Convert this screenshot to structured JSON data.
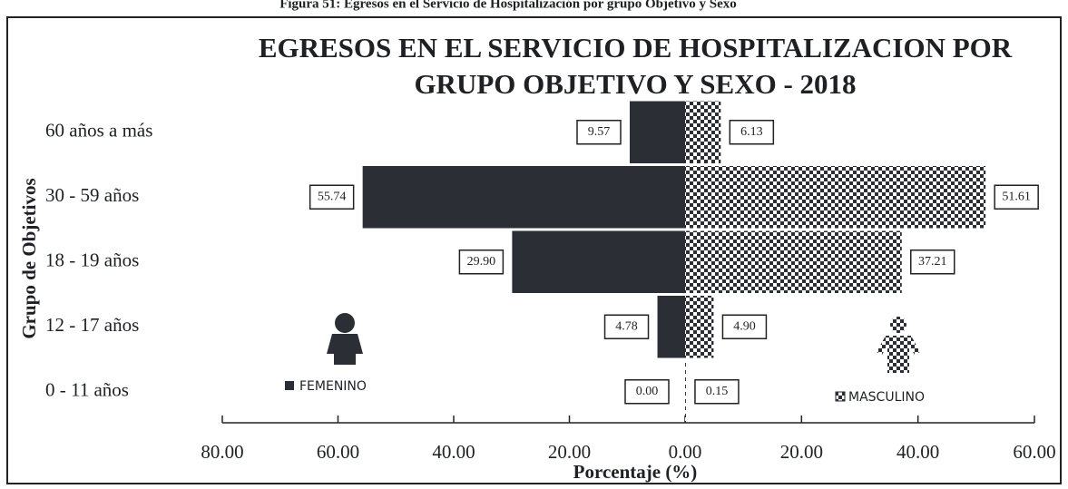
{
  "chart_data": {
    "type": "pyramid",
    "caption": "Figura 51: Egresos en el Servicio de Hospitalización por grupo Objetivo y Sexo",
    "title_lines": [
      "EGRESOS EN EL SERVICIO DE HOSPITALIZACION POR",
      "GRUPO OBJETIVO Y SEXO - 2018"
    ],
    "x_label": "Porcentaje (%)",
    "y_label": "Grupo de Objetivos",
    "categories": [
      "60 años a más",
      "30 - 59 años",
      "18 - 19 años",
      "12 - 17 años",
      "0 - 11 años"
    ],
    "series": [
      {
        "name": "FEMENINO",
        "side": "left",
        "color": "#2b2e34",
        "pattern": "solid",
        "values": [
          9.57,
          55.74,
          29.9,
          4.78,
          0.0
        ],
        "value_labels": [
          "9.57",
          "55.74",
          "29.90",
          "4.78",
          "0.00"
        ]
      },
      {
        "name": "MASCULINO",
        "side": "right",
        "color": "#2b2e34",
        "pattern": "checkered",
        "values": [
          6.13,
          51.61,
          37.21,
          4.9,
          0.15
        ],
        "value_labels": [
          "6.13",
          "51.61",
          "37.21",
          "4.90",
          "0.15"
        ]
      }
    ],
    "left_xlim": [
      0,
      80
    ],
    "left_xticks": [
      {
        "value": 80,
        "label": "80.00"
      },
      {
        "value": 60,
        "label": "60.00"
      },
      {
        "value": 40,
        "label": "40.00"
      },
      {
        "value": 20,
        "label": "20.00"
      },
      {
        "value": 0,
        "label": "0.00"
      }
    ],
    "right_xlim": [
      0,
      60
    ],
    "right_xticks": [
      {
        "value": 20,
        "label": "20.00"
      },
      {
        "value": 40,
        "label": "40.00"
      },
      {
        "value": 60,
        "label": "60.00"
      }
    ]
  }
}
